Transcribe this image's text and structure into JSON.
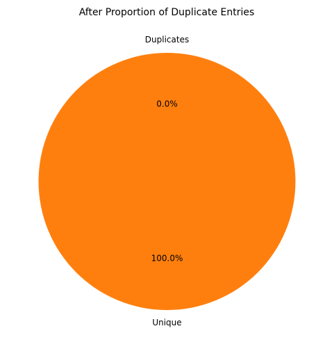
{
  "chart_data": {
    "type": "pie",
    "title": "After Proportion of Duplicate Entries",
    "slices": [
      {
        "label": "Duplicates",
        "value": 0.0,
        "percent_label": "0.0%",
        "color": "#1f77b4"
      },
      {
        "label": "Unique",
        "value": 100.0,
        "percent_label": "100.0%",
        "color": "#ff7f0e"
      }
    ],
    "start_angle_deg": 90,
    "counterclockwise": true
  }
}
